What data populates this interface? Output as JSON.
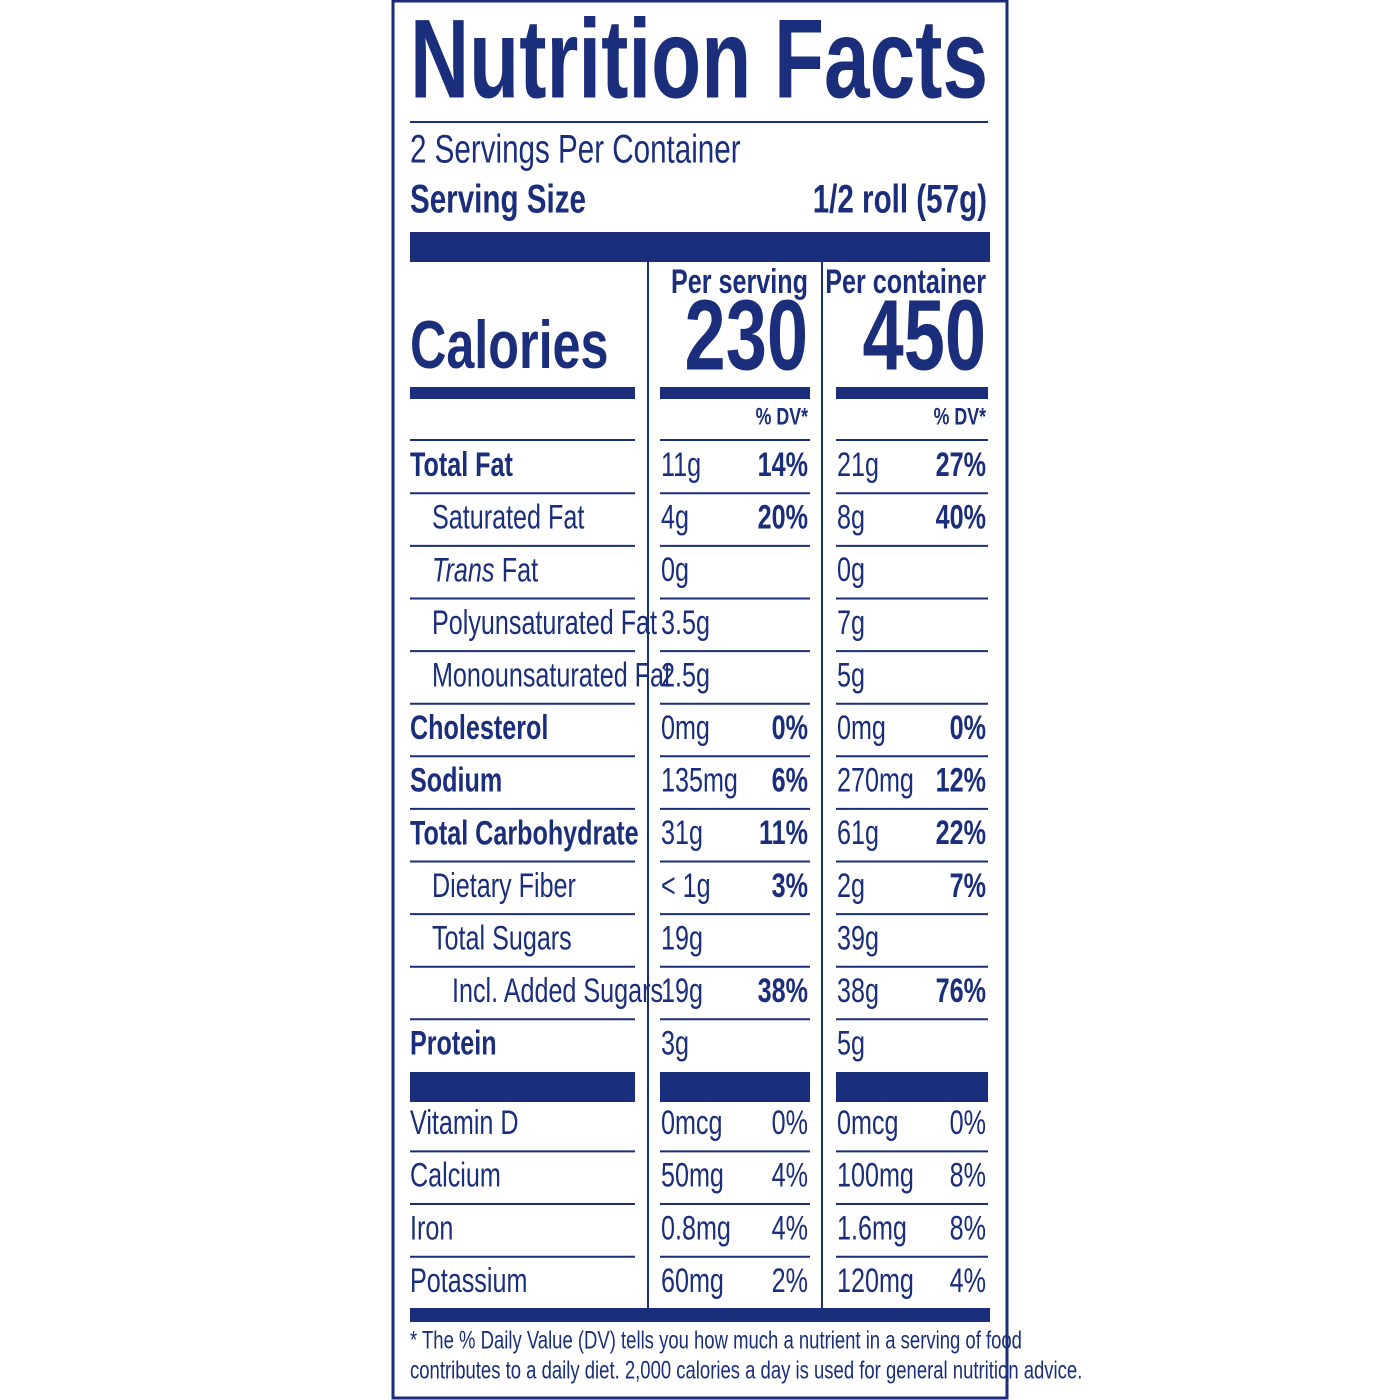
{
  "title": "Nutrition Facts",
  "servings_per_container": "2 Servings Per Container",
  "serving_size": {
    "label": "Serving Size",
    "value": "1/2 roll (57g)"
  },
  "calories": {
    "label": "Calories",
    "columns": [
      {
        "heading": "Per serving",
        "value": 230
      },
      {
        "heading": "Per container",
        "value": 450
      }
    ]
  },
  "dv_heading": "% DV*",
  "nutrients": [
    {
      "name": "Total Fat",
      "indent": 0,
      "bold": true,
      "serving": {
        "amount": "11g",
        "dv": "14%"
      },
      "container": {
        "amount": "21g",
        "dv": "27%"
      }
    },
    {
      "name": "Saturated Fat",
      "indent": 1,
      "bold": false,
      "serving": {
        "amount": "4g",
        "dv": "20%"
      },
      "container": {
        "amount": "8g",
        "dv": "40%"
      }
    },
    {
      "name_italic": "Trans",
      "name": "Fat",
      "indent": 1,
      "bold": false,
      "serving": {
        "amount": "0g"
      },
      "container": {
        "amount": "0g"
      }
    },
    {
      "name": "Polyunsaturated Fat",
      "indent": 1,
      "bold": false,
      "serving": {
        "amount": "3.5g"
      },
      "container": {
        "amount": "7g"
      }
    },
    {
      "name": "Monounsaturated Fat",
      "indent": 1,
      "bold": false,
      "serving": {
        "amount": "2.5g"
      },
      "container": {
        "amount": "5g"
      }
    },
    {
      "name": "Cholesterol",
      "indent": 0,
      "bold": true,
      "serving": {
        "amount": "0mg",
        "dv": "0%"
      },
      "container": {
        "amount": "0mg",
        "dv": "0%"
      }
    },
    {
      "name": "Sodium",
      "indent": 0,
      "bold": true,
      "serving": {
        "amount": "135mg",
        "dv": "6%"
      },
      "container": {
        "amount": "270mg",
        "dv": "12%"
      }
    },
    {
      "name": "Total Carbohydrate",
      "indent": 0,
      "bold": true,
      "serving": {
        "amount": "31g",
        "dv": "11%"
      },
      "container": {
        "amount": "61g",
        "dv": "22%"
      }
    },
    {
      "name": "Dietary Fiber",
      "indent": 1,
      "bold": false,
      "serving": {
        "amount": "< 1g",
        "dv": "3%"
      },
      "container": {
        "amount": "2g",
        "dv": "7%"
      }
    },
    {
      "name": "Total Sugars",
      "indent": 1,
      "bold": false,
      "serving": {
        "amount": "19g"
      },
      "container": {
        "amount": "39g"
      }
    },
    {
      "name": "Incl. Added Sugars",
      "indent": 2,
      "bold": false,
      "serving": {
        "amount": "19g",
        "dv": "38%"
      },
      "container": {
        "amount": "38g",
        "dv": "76%"
      }
    },
    {
      "name": "Protein",
      "indent": 0,
      "bold": true,
      "serving": {
        "amount": "3g"
      },
      "container": {
        "amount": "5g"
      }
    }
  ],
  "vitamins": [
    {
      "name": "Vitamin D",
      "serving": {
        "amount": "0mcg",
        "dv": "0%"
      },
      "container": {
        "amount": "0mcg",
        "dv": "0%"
      }
    },
    {
      "name": "Calcium",
      "serving": {
        "amount": "50mg",
        "dv": "4%"
      },
      "container": {
        "amount": "100mg",
        "dv": "8%"
      }
    },
    {
      "name": "Iron",
      "serving": {
        "amount": "0.8mg",
        "dv": "4%"
      },
      "container": {
        "amount": "1.6mg",
        "dv": "8%"
      }
    },
    {
      "name": "Potassium",
      "serving": {
        "amount": "60mg",
        "dv": "2%"
      },
      "container": {
        "amount": "120mg",
        "dv": "4%"
      }
    }
  ],
  "footnote": [
    "* The % Daily Value (DV) tells you how much a nutrient in a serving of food",
    "contributes to a daily diet. 2,000 calories a day is used for general nutrition advice."
  ]
}
